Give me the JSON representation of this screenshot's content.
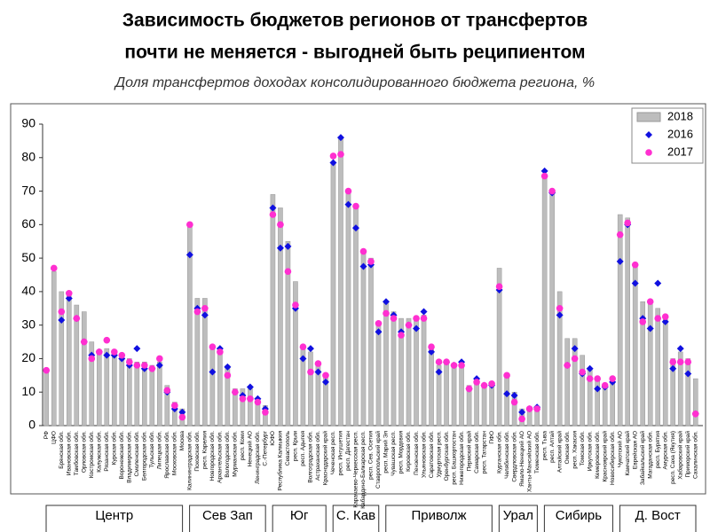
{
  "chart_data": {
    "type": "bar",
    "title": [
      "Зависимость бюджетов регионов от трансфертов",
      "почти не меняется - выгодней быть реципиентом"
    ],
    "subtitle": "Доля трансфертов доходах консолидированного бюджета региона, %",
    "ylim": [
      0,
      90
    ],
    "yticks": [
      0,
      10,
      20,
      30,
      40,
      50,
      60,
      70,
      80,
      90
    ],
    "legend": "upper right",
    "groups": [
      {
        "label": "Центр",
        "categories": [
          "РФ",
          "ЦФО",
          "Брянская обл.",
          "Ивановская обл.",
          "Тамбовская обл.",
          "Орловская обл.",
          "Костромская обл.",
          "Калужская обл.",
          "Рязанская обл.",
          "Курская обл.",
          "Воронежская обл.",
          "Владимирская обл.",
          "Смоленская обл.",
          "Белгородская обл.",
          "Тульская обл.",
          "Липецкая обл.",
          "Ярославская обл.",
          "Московская обл.",
          "Москва"
        ]
      },
      {
        "label": "Сев Зап",
        "categories": [
          "Калининградская обл.",
          "Псковская обл.",
          "респ. Карелия",
          "Новгородская обл.",
          "Архангельская обл.",
          "Вологодская обл.",
          "Мурманская обл.",
          "респ. Коми",
          "Ненецкий АО",
          "Ленинградская обл.",
          "С.-Петербург"
        ]
      },
      {
        "label": "Юг",
        "categories": [
          "ЮФО",
          "Республика Калмыкия",
          "Севастополь",
          "респ. Крым",
          "респ. Адыгея",
          "Волгоградская обл.",
          "Астраханская обл.",
          "Краснодарский край"
        ]
      },
      {
        "label": "С. Кав",
        "categories": [
          "Чеченская респ.",
          "респ. Ингушетия",
          "респ. Дагестан",
          "Карачаево-Черкесская респ.",
          "Кабардино-Балкарская респ.",
          "респ. Сев. Осетия",
          "Ставропольский край"
        ]
      },
      {
        "label": "Приволж",
        "categories": [
          "респ. Марий Эл",
          "Чувашская респ.",
          "респ. Мордовия",
          "Кировская обл.",
          "Пензенская обл.",
          "Ульяновская обл.",
          "Саратовская обл.",
          "Удмуртская респ.",
          "Оренбургская обл.",
          "респ. Башкортостан",
          "Нижегородская обл.",
          "Пермский край",
          "Самарская обл.",
          "респ. Татарстан",
          "ПФО"
        ]
      },
      {
        "label": "Урал",
        "categories": [
          "Курганская обл.",
          "Челябинская обл.",
          "Свердловская обл.",
          "Ямало-Ненецкий АО",
          "Ханты-Мансийский АО",
          "Тюменская обл."
        ]
      },
      {
        "label": "Сибирь",
        "categories": [
          "респ. Тыва",
          "респ. Алтай",
          "Алтайский край",
          "Омская обл.",
          "респ. Хакасия",
          "Томская обл.",
          "Иркутская обл.",
          "Кемеровская обл.",
          "Красноярский край",
          "Новосибирская обл."
        ]
      },
      {
        "label": "Д. Вост",
        "categories": [
          "Чукотский АО",
          "Камчатский край",
          "Еврейская АО",
          "Забайкальский край",
          "Магаданская обл.",
          "респ. Бурятия",
          "Амурская обл.",
          "респ. Саха (Якутия)",
          "Хабаровский край",
          "Приморский край",
          "Сахалинская обл."
        ]
      }
    ],
    "series": [
      {
        "name": "2018",
        "marker": "bar",
        "color": "#bdbdbd",
        "values": [
          16,
          46,
          40,
          40,
          36,
          34,
          25,
          22,
          23,
          22,
          21,
          20,
          19,
          19,
          18,
          19,
          12,
          7,
          5,
          60,
          38,
          38,
          24,
          22,
          18,
          11,
          11,
          11,
          8,
          6,
          69,
          65,
          55,
          43,
          23,
          22,
          19,
          15,
          78,
          86,
          70,
          66,
          52,
          50,
          30,
          37,
          34,
          32,
          32,
          32,
          33,
          23,
          18,
          19,
          18,
          18,
          12,
          13,
          12,
          12,
          47,
          15,
          10,
          5,
          5,
          5,
          75,
          70,
          40,
          26,
          26,
          21,
          17,
          14,
          12,
          14,
          63,
          62,
          48,
          37,
          37,
          35,
          33,
          20,
          22,
          20,
          14
        ]
      },
      {
        "name": "2016",
        "marker": "diamond",
        "color": "#1010e0",
        "values": [
          null,
          null,
          31.5,
          38,
          32,
          25,
          21,
          22,
          21,
          21,
          20,
          18,
          23,
          17,
          17,
          18,
          10,
          5,
          4,
          51,
          35,
          33,
          16,
          23,
          17.5,
          10,
          9,
          11.5,
          8,
          5,
          65,
          53,
          53.5,
          35,
          20,
          23,
          16,
          13,
          78.5,
          86,
          66,
          59,
          47.5,
          48,
          28,
          37,
          33,
          28,
          30,
          29,
          34,
          22,
          16,
          19,
          18,
          19,
          11,
          14,
          12,
          12,
          40.5,
          9.5,
          9,
          4,
          5,
          5.5,
          76,
          69.5,
          33,
          18,
          23,
          15.5,
          17,
          11,
          11.5,
          13,
          49,
          60,
          42.5,
          32,
          29,
          42.5,
          31,
          17,
          23,
          15.5,
          3.5
        ]
      },
      {
        "name": "2017",
        "marker": "circle",
        "color": "#ff2fd0",
        "values": [
          16.5,
          47,
          34,
          39.5,
          32,
          25,
          20,
          22,
          25.5,
          22,
          21,
          19,
          18,
          18,
          17,
          20,
          10.5,
          6,
          2.5,
          60,
          34,
          35,
          23.5,
          22,
          15,
          10,
          8,
          8,
          7,
          4,
          63,
          60,
          46,
          36,
          23.5,
          16,
          18.5,
          15,
          80.5,
          81,
          70,
          65.5,
          52,
          49,
          30.5,
          33.5,
          32,
          27,
          30,
          32,
          32,
          23.5,
          19,
          19,
          18,
          18,
          11,
          13,
          12,
          12.5,
          41.5,
          15,
          7,
          2,
          5,
          5,
          74.5,
          70,
          35,
          18,
          20,
          16,
          14,
          14,
          12,
          14,
          57,
          60.5,
          48,
          31,
          37,
          32,
          32.5,
          19,
          19,
          19,
          3.5
        ]
      }
    ]
  }
}
